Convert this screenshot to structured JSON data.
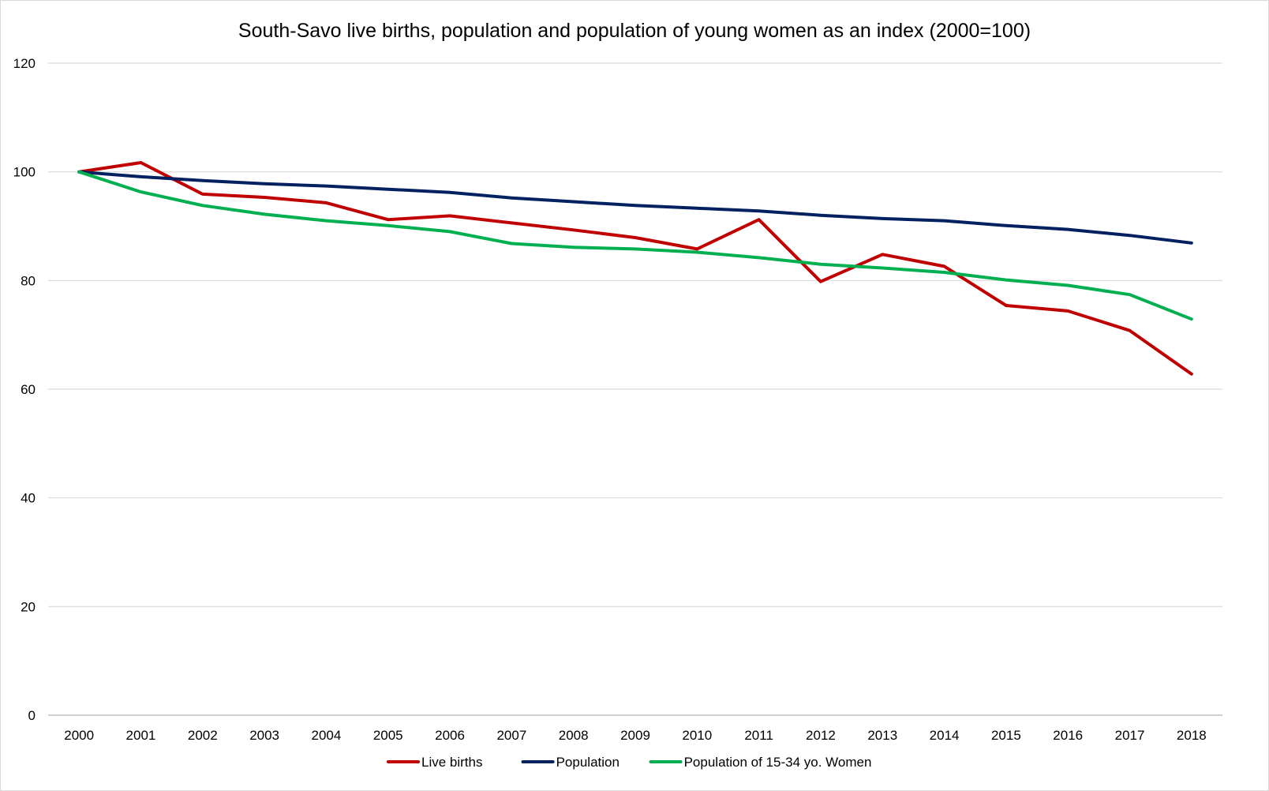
{
  "chart_data": {
    "type": "line",
    "title": "South-Savo live births, population and population of young women as an index (2000=100)",
    "xlabel": "",
    "ylabel": "",
    "categories": [
      "2000",
      "2001",
      "2002",
      "2003",
      "2004",
      "2005",
      "2006",
      "2007",
      "2008",
      "2009",
      "2010",
      "2011",
      "2012",
      "2013",
      "2014",
      "2015",
      "2016",
      "2017",
      "2018"
    ],
    "yticks": [
      "0",
      "20",
      "40",
      "60",
      "80",
      "100",
      "120"
    ],
    "ylim": [
      0,
      120
    ],
    "grid": true,
    "legend_position": "bottom",
    "series": [
      {
        "name": "Live births",
        "color": "#C00000",
        "values": [
          100,
          101.7,
          95.9,
          95.3,
          94.3,
          91.2,
          91.9,
          90.6,
          89.3,
          87.9,
          85.8,
          91.2,
          79.8,
          84.8,
          82.6,
          75.4,
          74.4,
          70.8,
          62.8
        ]
      },
      {
        "name": "Population",
        "color": "#002060",
        "values": [
          100,
          99.1,
          98.4,
          97.8,
          97.4,
          96.8,
          96.2,
          95.2,
          94.5,
          93.8,
          93.3,
          92.8,
          92.0,
          91.4,
          91.0,
          90.1,
          89.4,
          88.3,
          86.9
        ]
      },
      {
        "name": "Population of 15-34 yo. Women",
        "color": "#00B050",
        "values": [
          100,
          96.3,
          93.8,
          92.2,
          91.0,
          90.1,
          89.0,
          86.8,
          86.1,
          85.8,
          85.2,
          84.2,
          83.0,
          82.3,
          81.5,
          80.1,
          79.1,
          77.4,
          72.9
        ]
      }
    ]
  }
}
